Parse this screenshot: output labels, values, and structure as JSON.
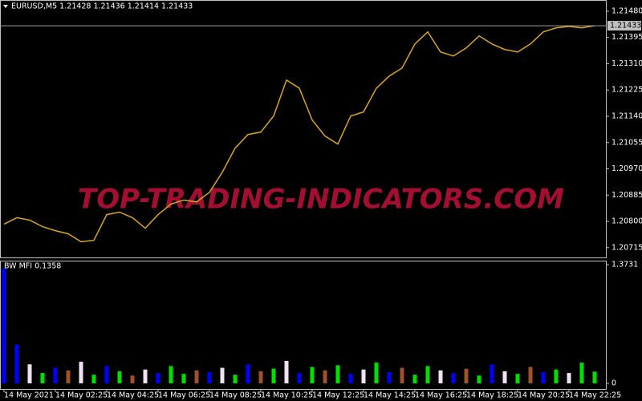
{
  "chart_data": [
    {
      "type": "line",
      "title": "EURUSD,M5  1.21428 1.21436 1.21414 1.21433",
      "watermark": "TOP-TRADING-INDICATORS.COM",
      "color": "#daa520",
      "values": [
        1.20791,
        1.20812,
        1.20804,
        1.20783,
        1.2077,
        1.2076,
        1.20734,
        1.20739,
        1.20822,
        1.2083,
        1.20812,
        1.20778,
        1.20822,
        1.20856,
        1.20869,
        1.20863,
        1.20894,
        1.20959,
        1.21037,
        1.21081,
        1.21089,
        1.21141,
        1.21257,
        1.21231,
        1.21128,
        1.21076,
        1.2105,
        1.21141,
        1.21154,
        1.21231,
        1.2127,
        1.21296,
        1.21374,
        1.21413,
        1.21348,
        1.21335,
        1.21361,
        1.214,
        1.21374,
        1.21356,
        1.21348,
        1.21374,
        1.21413,
        1.21426,
        1.21431,
        1.21426,
        1.21433
      ],
      "last_price": 1.21433,
      "ylim": [
        1.20686,
        1.21511
      ],
      "yticks": [
        {
          "value": 1.2148,
          "label": "1.21480"
        },
        1.21395,
        {
          "value": 1.2131,
          "label": "1.21310"
        },
        1.21225,
        {
          "value": 1.2114,
          "label": "1.21140"
        },
        1.21055,
        {
          "value": 1.2097,
          "label": "1.20970"
        },
        1.20885,
        {
          "value": 1.208,
          "label": "1.20800"
        },
        1.20715
      ]
    },
    {
      "type": "bar",
      "title": "BW MFI 0.1358",
      "categories": [
        "14 May 2021",
        null,
        null,
        null,
        "14 May 02:25",
        null,
        null,
        null,
        "14 May 04:25",
        null,
        null,
        null,
        "14 May 06:25",
        null,
        null,
        null,
        "14 May 08:25",
        null,
        null,
        null,
        "14 May 10:25",
        null,
        null,
        null,
        "14 May 12:25",
        null,
        null,
        null,
        "14 May 14:25",
        null,
        null,
        null,
        "14 May 16:25",
        null,
        null,
        null,
        "14 May 18:25",
        null,
        null,
        null,
        "14 May 20:25",
        null,
        null,
        null,
        "14 May 22:25",
        null,
        null
      ],
      "values": [
        1.33,
        0.45,
        0.22,
        0.12,
        0.18,
        0.15,
        0.25,
        0.1,
        0.2,
        0.14,
        0.09,
        0.16,
        0.12,
        0.2,
        0.11,
        0.15,
        0.13,
        0.18,
        0.1,
        0.22,
        0.14,
        0.17,
        0.26,
        0.12,
        0.19,
        0.15,
        0.21,
        0.11,
        0.16,
        0.24,
        0.13,
        0.18,
        0.1,
        0.2,
        0.15,
        0.12,
        0.17,
        0.09,
        0.22,
        0.14,
        0.11,
        0.19,
        0.13,
        0.16,
        0.12,
        0.24,
        0.1358
      ],
      "colors": [
        "#0000ff",
        "#0000ff",
        "#f0e0f0",
        "#00e000",
        "#0000ff",
        "#a0522d",
        "#f0e0f0",
        "#00e000",
        "#0000ff",
        "#00e000",
        "#a0522d",
        "#f0e0f0",
        "#0000ff",
        "#00e000",
        "#00e000",
        "#a0522d",
        "#0000ff",
        "#f0e0f0",
        "#00e000",
        "#0000ff",
        "#a0522d",
        "#00e000",
        "#f0e0f0",
        "#0000ff",
        "#00e000",
        "#a0522d",
        "#00e000",
        "#0000ff",
        "#f0e0f0",
        "#00e000",
        "#0000ff",
        "#a0522d",
        "#00e000",
        "#00e000",
        "#f0e0f0",
        "#0000ff",
        "#a0522d",
        "#00e000",
        "#0000ff",
        "#f0e0f0",
        "#00e000",
        "#a0522d",
        "#0000ff",
        "#00e000",
        "#f0e0f0",
        "#00e000",
        "#00e000"
      ],
      "ylim": [
        -0.065,
        1.42
      ],
      "yticks": [
        1.3731,
        0
      ]
    }
  ]
}
